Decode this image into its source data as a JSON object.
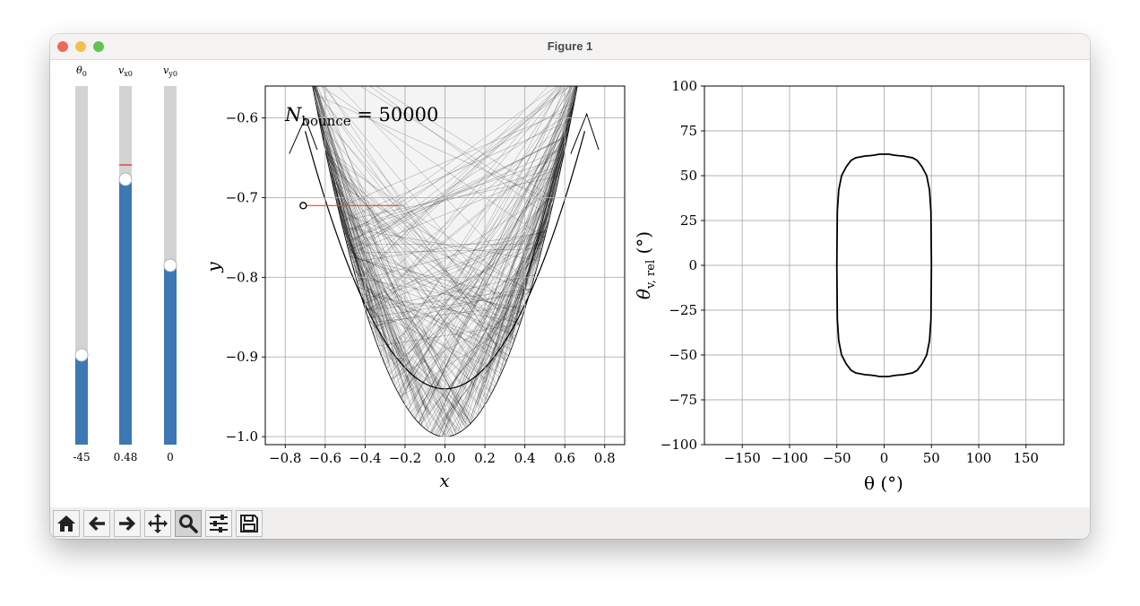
{
  "window": {
    "title": "Figure 1",
    "traffic_colors": [
      "#ed6a5e",
      "#f5bf4f",
      "#61c554"
    ]
  },
  "sliders": [
    {
      "label": "θ",
      "label_sub": "0",
      "value": -45,
      "value_text": "-45",
      "min": -90,
      "max": 90
    },
    {
      "label": "v",
      "label_sub": "x0",
      "value": 0.48,
      "value_text": "0.48",
      "min": -1,
      "max": 1,
      "valinit": 0.56
    },
    {
      "label": "v",
      "label_sub": "y0",
      "value": 0,
      "value_text": "0",
      "min": -1,
      "max": 1
    }
  ],
  "slider_colors": {
    "fill": "#3d77b4",
    "track": "#d3d3d3",
    "handle": "#ffffff",
    "marker": "#e8453c"
  },
  "chart_data": [
    {
      "type": "line",
      "title": "",
      "annotation": {
        "base": "N",
        "sub": "bounce",
        "rest": " = 50000"
      },
      "xlabel": "x",
      "ylabel": "y",
      "xlim": [
        -0.9,
        0.9
      ],
      "ylim": [
        -1.01,
        -0.56
      ],
      "xticks": [
        -0.8,
        -0.6,
        -0.4,
        -0.2,
        0.0,
        0.2,
        0.4,
        0.6,
        0.8
      ],
      "yticks": [
        -1.0,
        -0.9,
        -0.8,
        -0.7,
        -0.6
      ],
      "xtick_labels": [
        "−0.8",
        "−0.6",
        "−0.4",
        "−0.2",
        "0.0",
        "0.2",
        "0.4",
        "0.6",
        "0.8"
      ],
      "ytick_labels": [
        "−1.0",
        "−0.9",
        "−0.8",
        "−0.7",
        "−0.6"
      ],
      "grid": true,
      "boundary_curve": "y = x^2 - 1 for |x| <= 0.8",
      "caustic_curve": "y = -0.94 + 0.66 x^2",
      "start_point": {
        "x": -0.71,
        "y": -0.71
      },
      "velocity_arrow_end": {
        "x": -0.22,
        "y": -0.71
      },
      "colors": {
        "trajectories": "#000000",
        "region": "#f4f4f4",
        "velocity": "#e8453c"
      }
    },
    {
      "type": "line",
      "title": "",
      "xlabel": "θ (°)",
      "ylabel": "θ_v,rel (°)",
      "ylabel_parts": {
        "base": "θ",
        "sub": "v, rel",
        "unit": " (°)"
      },
      "xlim": [
        -190,
        190
      ],
      "ylim": [
        -100,
        100
      ],
      "xticks": [
        -150,
        -100,
        -50,
        0,
        50,
        100,
        150
      ],
      "yticks": [
        -100,
        -75,
        -50,
        -25,
        0,
        25,
        50,
        75,
        100
      ],
      "xtick_labels": [
        "−150",
        "−100",
        "−50",
        "0",
        "50",
        "100",
        "150"
      ],
      "ytick_labels": [
        "−100",
        "−75",
        "−50",
        "−25",
        "0",
        "25",
        "50",
        "75",
        "100"
      ],
      "grid": true,
      "series": [
        {
          "x": [
            -50,
            -49.5,
            -48,
            -45,
            -40,
            -35,
            -30,
            -25,
            -20,
            -15,
            -10,
            -5,
            0,
            5,
            10,
            15,
            20,
            25,
            30,
            35,
            40,
            45,
            48,
            49.5,
            50,
            50,
            49.5,
            48,
            45,
            40,
            35,
            30,
            25,
            20,
            15,
            10,
            5,
            0,
            -5,
            -10,
            -15,
            -20,
            -25,
            -30,
            -35,
            -40,
            -45,
            -48,
            -49.5,
            -50,
            -50
          ],
          "y": [
            0,
            30,
            42,
            50,
            55,
            58.5,
            60,
            60.5,
            61,
            61.2,
            61.5,
            62,
            62,
            62,
            61.5,
            61.2,
            61,
            60.5,
            60,
            58.5,
            55,
            50,
            42,
            30,
            0,
            0,
            -30,
            -42,
            -50,
            -55,
            -58.5,
            -60,
            -60.5,
            -61,
            -61.2,
            -61.5,
            -62,
            -62,
            -62,
            -61.5,
            -61.2,
            -61,
            -60.5,
            -60,
            -58.5,
            -55,
            -50,
            -42,
            -30,
            0,
            0
          ]
        }
      ]
    }
  ],
  "toolbar": [
    {
      "name": "home-icon",
      "active": false
    },
    {
      "name": "back-arrow-icon",
      "active": false
    },
    {
      "name": "forward-arrow-icon",
      "active": false
    },
    {
      "name": "pan-move-icon",
      "active": false
    },
    {
      "name": "zoom-magnifier-icon",
      "active": true
    },
    {
      "name": "configure-subplots-icon",
      "active": false
    },
    {
      "name": "save-figure-icon",
      "active": false
    }
  ]
}
